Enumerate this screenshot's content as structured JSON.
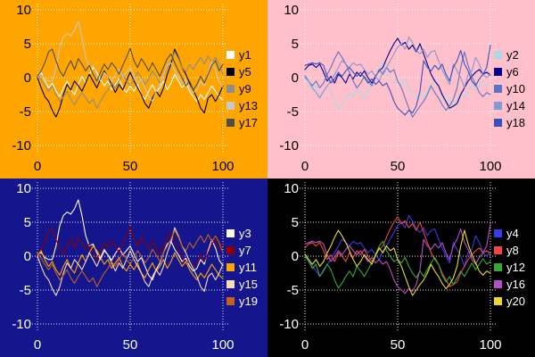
{
  "chart_data": {
    "type": "line",
    "title": "",
    "xlabel": "",
    "ylabel": "",
    "grid": true,
    "grid_style": "dotted",
    "grid_color": "#FFFFFF",
    "legend_position": "right",
    "xlim": [
      0,
      100
    ],
    "ylim": [
      -10,
      10
    ],
    "x_tick_values": [
      0,
      50,
      100
    ],
    "x_tick_labels": [
      "0",
      "50",
      "100"
    ],
    "y_tick_values": [
      10,
      5,
      0,
      -5,
      -10
    ],
    "y_tick_labels": [
      "10",
      "5",
      "0",
      "-5",
      "-10"
    ],
    "x": [
      0,
      2,
      4,
      6,
      8,
      10,
      12,
      14,
      16,
      18,
      20,
      22,
      24,
      26,
      28,
      30,
      32,
      34,
      36,
      38,
      40,
      42,
      44,
      46,
      48,
      50,
      52,
      54,
      56,
      58,
      60,
      62,
      64,
      66,
      68,
      70,
      72,
      74,
      76,
      78,
      80,
      82,
      84,
      86,
      88,
      90,
      92,
      94,
      96,
      98,
      100
    ],
    "series_pool": {
      "LA": [
        0.3,
        0.5,
        -0.2,
        -0.5,
        -0.5,
        1.5,
        4.5,
        6.0,
        6.5,
        6.2,
        7.0,
        8.3,
        6.0,
        3.0,
        1.5,
        1.8,
        0.5,
        -0.5,
        0.8,
        0.2,
        -0.6,
        0.4,
        1.2,
        0.2,
        0.8,
        1.5,
        0.3,
        -0.8,
        -0.2,
        -1.5,
        -2.8,
        -3.5,
        -2.0,
        -1.0,
        0.5,
        1.8,
        2.2,
        1.0,
        0.2,
        -0.8,
        -0.3,
        -1.5,
        -2.2,
        -1.8,
        -0.5,
        -1.2,
        0.8,
        2.4,
        1.2,
        -0.6,
        -1.4
      ],
      "LB": [
        0.0,
        -1.5,
        -2.8,
        -3.5,
        -4.8,
        -5.8,
        -4.5,
        -2.5,
        -1.0,
        -1.8,
        -0.5,
        -1.2,
        -2.0,
        -0.8,
        0.5,
        -0.5,
        -1.5,
        -0.2,
        1.0,
        0.2,
        -1.0,
        -2.2,
        -1.0,
        -1.8,
        -0.5,
        0.8,
        -0.5,
        -1.5,
        -2.5,
        -3.8,
        -4.5,
        -3.0,
        -2.0,
        -2.8,
        -1.5,
        0.5,
        2.0,
        4.2,
        3.0,
        1.5,
        0.5,
        -0.8,
        -1.8,
        -3.0,
        -4.5,
        -5.2,
        -3.0,
        -2.5,
        -3.5,
        -2.5,
        -1.2
      ],
      "LC": [
        0.2,
        1.0,
        2.2,
        3.8,
        4.2,
        2.5,
        1.0,
        0.2,
        1.5,
        2.5,
        1.2,
        2.8,
        2.0,
        1.0,
        1.8,
        0.5,
        -0.5,
        0.8,
        2.0,
        1.2,
        2.2,
        1.5,
        0.5,
        1.8,
        3.0,
        4.3,
        2.5,
        1.5,
        2.8,
        2.0,
        1.0,
        2.2,
        1.2,
        0.2,
        1.5,
        2.8,
        3.5,
        2.2,
        1.0,
        0.0,
        -1.2,
        -0.5,
        -1.8,
        -1.0,
        0.2,
        -0.8,
        0.5,
        1.8,
        2.5,
        1.0,
        2.0
      ],
      "LD": [
        0.0,
        0.8,
        -0.5,
        -1.5,
        -0.8,
        -2.0,
        -2.8,
        -1.5,
        -0.5,
        -1.8,
        -2.5,
        -1.0,
        0.2,
        -0.8,
        0.5,
        1.5,
        0.8,
        -0.2,
        -1.2,
        -0.5,
        -1.8,
        -1.0,
        -0.2,
        -1.5,
        -2.2,
        -1.2,
        -2.0,
        -1.0,
        -2.5,
        -3.2,
        -2.0,
        -1.0,
        -2.2,
        -1.5,
        -0.5,
        -1.8,
        -0.8,
        0.5,
        -0.5,
        -1.5,
        -0.8,
        -2.0,
        -2.8,
        -3.5,
        -2.5,
        -3.2,
        -2.2,
        -1.2,
        -2.0,
        -2.8,
        -3.3
      ],
      "LE": [
        0.5,
        -0.3,
        -1.2,
        -2.0,
        -1.2,
        -2.5,
        -3.5,
        -2.8,
        -2.0,
        -3.2,
        -4.0,
        -3.0,
        -2.2,
        -3.0,
        -3.8,
        -3.2,
        -4.5,
        -3.5,
        -2.5,
        -1.8,
        -0.8,
        -1.5,
        -0.5,
        0.5,
        -0.5,
        -1.2,
        -0.2,
        0.8,
        0.0,
        -1.0,
        -0.2,
        1.0,
        0.2,
        -0.8,
        0.5,
        1.5,
        2.5,
        3.8,
        2.8,
        1.5,
        0.8,
        2.0,
        1.2,
        2.2,
        3.0,
        2.0,
        3.2,
        2.2,
        3.0,
        2.0,
        0.5
      ],
      "RA": [
        0.0,
        -0.5,
        -1.5,
        -2.2,
        -3.0,
        -2.0,
        -1.2,
        -0.5,
        0.5,
        1.5,
        2.5,
        2.0,
        1.5,
        2.2,
        1.8,
        2.0,
        1.2,
        0.5,
        1.0,
        0.2,
        -0.5,
        0.8,
        1.5,
        2.5,
        3.5,
        4.5,
        5.0,
        4.2,
        6.0,
        5.2,
        4.0,
        3.5,
        4.2,
        3.0,
        3.8,
        4.0,
        2.5,
        1.2,
        0.0,
        -1.0,
        2.0,
        1.0,
        0.0,
        -1.5,
        0.5,
        1.0,
        3.0,
        2.0,
        0.5,
        0.0,
        0.5
      ],
      "RB": [
        1.2,
        1.8,
        2.0,
        1.5,
        2.0,
        0.8,
        -0.5,
        0.2,
        -0.8,
        0.5,
        0.0,
        -0.8,
        0.5,
        -0.2,
        0.8,
        0.2,
        1.0,
        0.0,
        -0.8,
        0.2,
        1.0,
        1.5,
        2.8,
        4.0,
        5.0,
        5.8,
        4.8,
        5.2,
        4.2,
        4.8,
        3.8,
        5.0,
        3.5,
        2.0,
        0.5,
        -0.5,
        -1.2,
        -2.5,
        -3.5,
        -4.5,
        -4.2,
        -3.8,
        -2.5,
        -1.5,
        -0.5,
        0.2,
        0.8,
        1.2,
        0.5,
        0.8,
        0.4
      ],
      "RC": [
        0.0,
        -0.8,
        -1.8,
        -1.2,
        -3.0,
        -2.2,
        -1.2,
        -2.0,
        -3.5,
        -4.7,
        -4.0,
        -3.0,
        -2.2,
        -3.0,
        -1.5,
        -2.2,
        -3.0,
        -2.0,
        -1.0,
        0.2,
        1.5,
        2.2,
        0.8,
        0.0,
        -0.8,
        -0.5,
        -1.0,
        -0.2,
        -1.5,
        -2.5,
        -3.2,
        -2.2,
        -3.0,
        -2.0,
        -1.0,
        -0.2,
        -1.2,
        -2.8,
        -3.8,
        -3.0,
        -4.2,
        -3.2,
        -2.2,
        -3.0,
        -2.0,
        -1.0,
        -2.0,
        -1.2,
        -0.4,
        -1.2,
        -0.8
      ],
      "RD": [
        1.8,
        2.0,
        2.2,
        2.0,
        2.2,
        1.8,
        0.2,
        -0.8,
        -0.2,
        0.8,
        0.2,
        1.0,
        1.5,
        0.8,
        0.2,
        0.8,
        0.0,
        -0.8,
        -0.2,
        -1.0,
        -0.5,
        -1.2,
        -0.8,
        -2.0,
        -3.5,
        -4.5,
        -5.0,
        -5.5,
        -4.8,
        -5.2,
        -4.2,
        -2.0,
        2.5,
        1.5,
        1.0,
        1.8,
        1.2,
        2.0,
        0.5,
        -0.5,
        1.5,
        2.5,
        4.0,
        2.0,
        1.0,
        -0.5,
        -1.2,
        -0.2,
        0.5,
        1.5,
        4.8
      ],
      "RE": [
        0.3,
        -0.5,
        -1.2,
        -0.5,
        -1.5,
        -0.8,
        0.5,
        1.5,
        2.8,
        3.8,
        3.0,
        2.0,
        0.8,
        -0.5,
        -1.5,
        -0.8,
        0.2,
        -0.5,
        -1.2,
        0.0,
        1.2,
        0.5,
        1.5,
        0.8,
        1.2,
        -0.5,
        -1.5,
        -3.0,
        -4.5,
        -5.8,
        -5.0,
        -4.2,
        -3.5,
        -2.5,
        -1.2,
        -2.2,
        -3.0,
        -4.0,
        -4.8,
        -4.2,
        -3.2,
        -1.5,
        1.5,
        3.8,
        1.8,
        0.2,
        -1.0,
        -2.2,
        -2.8,
        -2.2,
        -2.5
      ]
    },
    "panels": [
      {
        "id": "top-left",
        "background": "#FFA500",
        "text_color": "#000000",
        "series": [
          {
            "label": "y1",
            "color": "#FFFFFF",
            "data": "LD"
          },
          {
            "label": "y5",
            "color": "#000000",
            "data": "LB"
          },
          {
            "label": "y9",
            "color": "#8C8C8C",
            "data": "LE"
          },
          {
            "label": "y13",
            "color": "#C8C8C8",
            "data": "LA"
          },
          {
            "label": "y17",
            "color": "#4D4D4D",
            "data": "LC"
          }
        ]
      },
      {
        "id": "top-right",
        "background": "#FFC0CB",
        "text_color": "#000000",
        "series": [
          {
            "label": "y2",
            "color": "#ADD8E6",
            "data": "RC"
          },
          {
            "label": "y6",
            "color": "#00008B",
            "data": "RB"
          },
          {
            "label": "y10",
            "color": "#5D74C4",
            "data": "RE"
          },
          {
            "label": "y14",
            "color": "#8498D2",
            "data": "RA"
          },
          {
            "label": "y18",
            "color": "#3A50BE",
            "data": "RD"
          }
        ]
      },
      {
        "id": "bottom-left",
        "background": "#15158D",
        "text_color": "#FFFFFF",
        "series": [
          {
            "label": "y3",
            "color": "#FFFAF0",
            "data": "LA"
          },
          {
            "label": "y7",
            "color": "#8B0000",
            "data": "LC"
          },
          {
            "label": "y11",
            "color": "#FFA500",
            "data": "LD"
          },
          {
            "label": "y15",
            "color": "#F5DEB3",
            "data": "LB"
          },
          {
            "label": "y19",
            "color": "#C2641E",
            "data": "LE"
          }
        ]
      },
      {
        "id": "bottom-right",
        "background": "#000000",
        "text_color": "#FFFFFF",
        "series": [
          {
            "label": "y4",
            "color": "#3A3AE8",
            "data": "RA"
          },
          {
            "label": "y8",
            "color": "#F24545",
            "data": "RB"
          },
          {
            "label": "y12",
            "color": "#35A835",
            "data": "RC"
          },
          {
            "label": "y16",
            "color": "#B94CC8",
            "data": "RD"
          },
          {
            "label": "y20",
            "color": "#E8D930",
            "data": "RE"
          }
        ]
      }
    ]
  }
}
